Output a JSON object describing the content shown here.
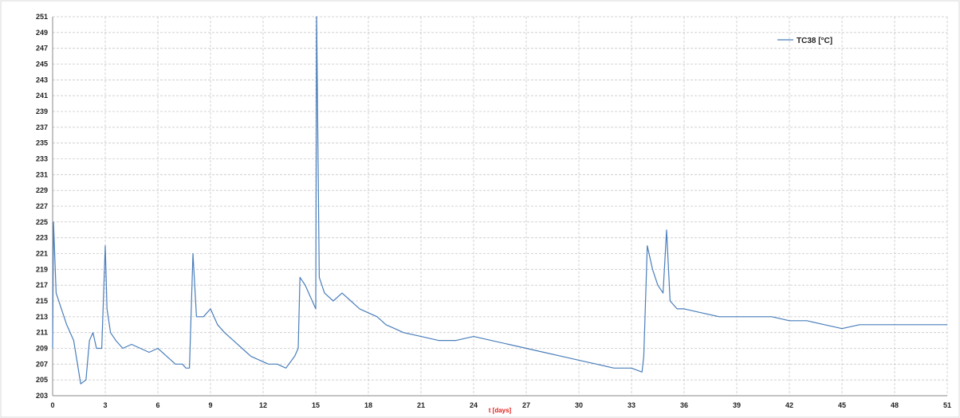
{
  "chart_data": {
    "type": "line",
    "title": "",
    "xlabel": "t [days]",
    "ylabel": "",
    "xlim": [
      0,
      51
    ],
    "ylim": [
      203,
      251
    ],
    "x_ticks": [
      0,
      3,
      6,
      9,
      12,
      15,
      18,
      21,
      24,
      27,
      30,
      33,
      36,
      39,
      42,
      45,
      48,
      51
    ],
    "y_ticks": [
      203,
      205,
      207,
      209,
      211,
      213,
      215,
      217,
      219,
      221,
      223,
      225,
      227,
      229,
      231,
      233,
      235,
      237,
      239,
      241,
      243,
      245,
      247,
      249,
      251
    ],
    "grid": true,
    "legend_position": "top-right",
    "series": [
      {
        "name": "TC38 [°C]",
        "color": "#4a7ebb",
        "x": [
          0,
          0.05,
          0.2,
          0.5,
          0.8,
          1.2,
          1.6,
          1.9,
          2.1,
          2.3,
          2.5,
          2.8,
          3.0,
          3.1,
          3.3,
          3.6,
          4.0,
          4.5,
          5.0,
          5.5,
          6.0,
          6.5,
          7.0,
          7.4,
          7.6,
          7.8,
          8.0,
          8.2,
          8.6,
          9.0,
          9.4,
          9.8,
          10.3,
          10.8,
          11.3,
          11.8,
          12.3,
          12.8,
          13.3,
          13.8,
          14.0,
          14.1,
          14.4,
          14.8,
          15.0,
          15.05,
          15.2,
          15.5,
          16.0,
          16.5,
          17.0,
          17.5,
          18.0,
          18.5,
          19.0,
          19.5,
          20.0,
          21.0,
          22.0,
          23.0,
          24.0,
          25.0,
          26.0,
          27.0,
          28.0,
          29.0,
          30.0,
          31.0,
          32.0,
          33.0,
          33.6,
          33.7,
          33.9,
          34.2,
          34.5,
          34.8,
          35.0,
          35.2,
          35.6,
          36.0,
          37.0,
          38.0,
          39.0,
          40.0,
          41.0,
          42.0,
          43.0,
          44.0,
          45.0,
          46.0,
          47.0,
          48.0,
          49.0,
          50.0,
          51.0
        ],
        "y": [
          209,
          225,
          216,
          214,
          212,
          210,
          204.5,
          205,
          210,
          211,
          209,
          209,
          222,
          214,
          211,
          210,
          209,
          209.5,
          209,
          208.5,
          209,
          208,
          207,
          207,
          206.5,
          206.5,
          221,
          213,
          213,
          214,
          212,
          211,
          210,
          209,
          208,
          207.5,
          207,
          207,
          206.5,
          208,
          209,
          218,
          217,
          215,
          214,
          251,
          218,
          216,
          215,
          216,
          215,
          214,
          213.5,
          213,
          212,
          211.5,
          211,
          210.5,
          210,
          210,
          210.5,
          210,
          209.5,
          209,
          208.5,
          208,
          207.5,
          207,
          206.5,
          206.5,
          206,
          208,
          222,
          219,
          217,
          216,
          224,
          215,
          214,
          214,
          213.5,
          213,
          213,
          213,
          213,
          212.5,
          212.5,
          212,
          211.5,
          212,
          212,
          212,
          212,
          212,
          212
        ]
      }
    ]
  }
}
